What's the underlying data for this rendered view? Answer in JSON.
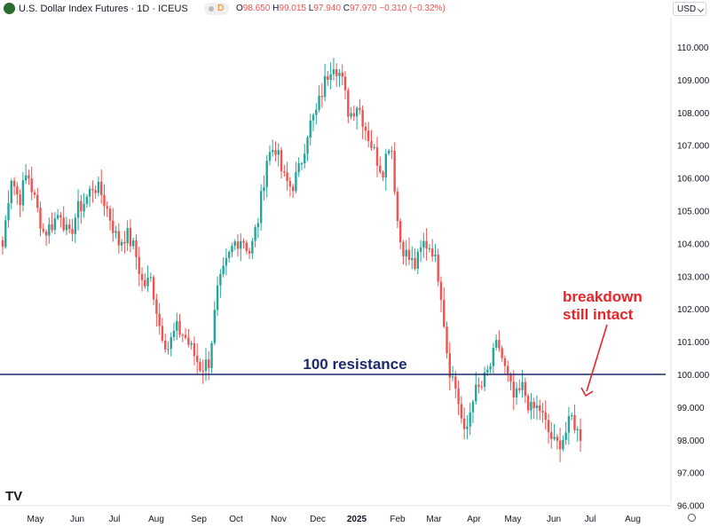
{
  "header": {
    "title": "U.S. Dollar Index Futures · 1D · ICEUS",
    "badge": "D",
    "ohlc": [
      {
        "k": "O",
        "v": "98.650"
      },
      {
        "k": "H",
        "v": "99.015"
      },
      {
        "k": "L",
        "v": "97.940"
      },
      {
        "k": "C",
        "v": "97.970"
      },
      {
        "k": "",
        "v": "−0.310 (−0.32%)"
      }
    ],
    "currency": "USD"
  },
  "branding": {
    "logo_text": "TV"
  },
  "colors": {
    "up": "#26a69a",
    "down": "#ef5350",
    "resistance": "#1a2a6c",
    "annotation": "#e8232a"
  },
  "chart_data": {
    "type": "candlestick",
    "instrument": "U.S. Dollar Index Futures",
    "timeframe": "1D",
    "x_tick_labels": [
      "May",
      "Jun",
      "Jul",
      "Aug",
      "Sep",
      "Oct",
      "Nov",
      "Dec",
      "2025",
      "Feb",
      "Mar",
      "Apr",
      "May",
      "Jun",
      "Jul",
      "Aug"
    ],
    "y_ticks": [
      "96.000",
      "97.000",
      "98.000",
      "99.000",
      "100.000",
      "101.000",
      "102.000",
      "103.000",
      "104.000",
      "105.000",
      "106.000",
      "107.000",
      "108.000",
      "109.000",
      "110.000"
    ],
    "ylim": [
      96,
      110.4
    ],
    "series": [
      {
        "values": [
          {
            "x": "Apr 22",
            "c": 103.9
          },
          {
            "x": "Apr 27",
            "c": 106.1
          },
          {
            "x": "May 2",
            "c": 105.3
          },
          {
            "x": "May 6",
            "c": 106.2
          },
          {
            "x": "May 10",
            "c": 105.2
          },
          {
            "x": "May 15",
            "c": 104.3
          },
          {
            "x": "May 20",
            "c": 104.6
          },
          {
            "x": "May 28",
            "c": 105.0
          },
          {
            "x": "Jun 3",
            "c": 104.1
          },
          {
            "x": "Jun 10",
            "c": 105.0
          },
          {
            "x": "Jun 17",
            "c": 105.3
          },
          {
            "x": "Jun 26",
            "c": 105.8
          },
          {
            "x": "Jul 3",
            "c": 105.5
          },
          {
            "x": "Jul 10",
            "c": 104.8
          },
          {
            "x": "Jul 17",
            "c": 104.0
          },
          {
            "x": "Jul 24",
            "c": 104.3
          },
          {
            "x": "Aug 1",
            "c": 103.8
          },
          {
            "x": "Aug 7",
            "c": 102.7
          },
          {
            "x": "Aug 14",
            "c": 102.9
          },
          {
            "x": "Aug 20",
            "c": 101.5
          },
          {
            "x": "Aug 27",
            "c": 100.8
          },
          {
            "x": "Sep 3",
            "c": 101.4
          },
          {
            "x": "Sep 10",
            "c": 101.2
          },
          {
            "x": "Sep 17",
            "c": 100.7
          },
          {
            "x": "Sep 24",
            "c": 100.2
          },
          {
            "x": "Sep 30",
            "c": 100.4
          },
          {
            "x": "Oct 7",
            "c": 102.5
          },
          {
            "x": "Oct 14",
            "c": 103.3
          },
          {
            "x": "Oct 21",
            "c": 104.0
          },
          {
            "x": "Oct 25",
            "c": 104.2
          },
          {
            "x": "Oct 30",
            "c": 103.7
          },
          {
            "x": "Nov 7",
            "c": 104.8
          },
          {
            "x": "Nov 14",
            "c": 106.6
          },
          {
            "x": "Nov 22",
            "c": 107.0
          },
          {
            "x": "Nov 27",
            "c": 106.0
          },
          {
            "x": "Dec 5",
            "c": 105.7
          },
          {
            "x": "Dec 12",
            "c": 106.3
          },
          {
            "x": "Dec 19",
            "c": 107.5
          },
          {
            "x": "Dec 26",
            "c": 108.0
          },
          {
            "x": "Jan 3",
            "c": 108.9
          },
          {
            "x": "Jan 10",
            "c": 109.6
          },
          {
            "x": "Jan 15",
            "c": 109.1
          },
          {
            "x": "Jan 23",
            "c": 107.9
          },
          {
            "x": "Jan 31",
            "c": 108.3
          },
          {
            "x": "Feb 7",
            "c": 107.5
          },
          {
            "x": "Feb 14",
            "c": 106.8
          },
          {
            "x": "Feb 21",
            "c": 106.2
          },
          {
            "x": "Feb 28",
            "c": 107.3
          },
          {
            "x": "Mar 5",
            "c": 104.2
          },
          {
            "x": "Mar 12",
            "c": 103.6
          },
          {
            "x": "Mar 19",
            "c": 103.3
          },
          {
            "x": "Mar 26",
            "c": 104.0
          },
          {
            "x": "Apr 2",
            "c": 103.9
          },
          {
            "x": "Apr 5",
            "c": 102.8
          },
          {
            "x": "Apr 9",
            "c": 100.3
          },
          {
            "x": "Apr 15",
            "c": 99.5
          },
          {
            "x": "Apr 21",
            "c": 98.0
          },
          {
            "x": "Apr 28",
            "c": 99.4
          },
          {
            "x": "May 5",
            "c": 99.6
          },
          {
            "x": "May 12",
            "c": 100.2
          },
          {
            "x": "May 15",
            "c": 101.0
          },
          {
            "x": "May 21",
            "c": 100.0
          },
          {
            "x": "May 27",
            "c": 99.2
          },
          {
            "x": "Jun 2",
            "c": 99.6
          },
          {
            "x": "Jun 9",
            "c": 98.9
          },
          {
            "x": "Jun 13",
            "c": 99.0
          },
          {
            "x": "Jun 16",
            "c": 98.3
          },
          {
            "x": "Jun 20",
            "c": 97.8
          },
          {
            "x": "Jun 23",
            "c": 98.1
          },
          {
            "x": "Jun 26",
            "c": 98.7
          },
          {
            "x": "Jun 27",
            "c": 97.97
          }
        ]
      }
    ],
    "levels": [
      {
        "label": "100 resistance",
        "value": 100.0
      }
    ],
    "annotations": [
      {
        "text": [
          "breakdown",
          "still intact"
        ]
      }
    ],
    "grid": false,
    "legend": "none"
  }
}
